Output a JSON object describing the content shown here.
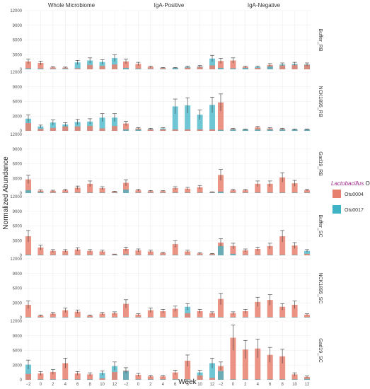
{
  "chart_data": {
    "type": "bar",
    "xlabel": "Week",
    "ylabel": "Normalized Abundance",
    "ylim": [
      0,
      12000
    ],
    "yticks": [
      0,
      3000,
      6000,
      9000,
      12000
    ],
    "weeks": [
      -2,
      0,
      2,
      4,
      6,
      8,
      10,
      12
    ],
    "xtick_labels": [
      "−2",
      "0",
      "2",
      "4",
      "6",
      "8",
      "10",
      "12"
    ],
    "columns": [
      "Whole Microbiome",
      "IgA-Positive",
      "IgA-Negative"
    ],
    "rows": [
      "Buffer_RB",
      "NCK1895_RB",
      "Gad19_RB",
      "Buffer_SC",
      "NCK1895_SC",
      "Gad19_SC"
    ],
    "legend": {
      "title_genus": "Lactobacillus",
      "title_suffix": " OTUs",
      "position": "right",
      "items": [
        "Otu0004",
        "Otu0017"
      ]
    },
    "colors": {
      "Otu0004": "#e8806f",
      "Otu0017": "#3fb3c6",
      "grid": "#ececec",
      "error": "#333333",
      "strip_text": "#333333"
    },
    "series": [
      {
        "name": "Otu0004",
        "values": [
          [
            [
              1600,
              1300,
              400,
              350,
              200,
              900,
              700,
              1000
            ],
            [
              1600,
              1100,
              500,
              300,
              300,
              350,
              500,
              800
            ],
            [
              1700,
              1800,
              500,
              300,
              900,
              800,
              900,
              900
            ]
          ],
          [
            [
              1600,
              400,
              600,
              900,
              900,
              1000,
              500,
              1000
            ],
            [
              1500,
              500,
              300,
              300,
              300,
              300,
              300,
              300
            ],
            [
              5800,
              400,
              300,
              700,
              500,
              400,
              300,
              300
            ]
          ],
          [
            [
              2800,
              500,
              450,
              600,
              1100,
              1900,
              1000,
              300
            ],
            [
              2100,
              600,
              400,
              400,
              1000,
              900,
              1200,
              200
            ],
            [
              3700,
              600,
              600,
              1900,
              1900,
              3200,
              2000,
              600
            ]
          ],
          [
            [
              3900,
              1600,
              900,
              900,
              1200,
              900,
              800,
              200
            ],
            [
              1300,
              1000,
              800,
              500,
              2300,
              800,
              400,
              300
            ],
            [
              2600,
              1900,
              1000,
              1300,
              1900,
              3900,
              2000,
              300
            ]
          ],
          [
            [
              2600,
              400,
              800,
              1500,
              1200,
              400,
              800,
              900
            ],
            [
              2800,
              600,
              1500,
              1300,
              1800,
              900,
              1300,
              900
            ],
            [
              3800,
              900,
              1300,
              3200,
              3600,
              2200,
              2600,
              600
            ]
          ],
          [
            [
              1200,
              1300,
              1600,
              3400,
              1300,
              1100,
              300,
              1600
            ],
            [
              1900,
              1000,
              700,
              700,
              1500,
              3900,
              900,
              400
            ],
            [
              2800,
              8600,
              6200,
              6400,
              5100,
              4800,
              1100,
              600
            ]
          ]
        ]
      },
      {
        "name": "Otu0017",
        "values": [
          [
            [
              200,
              150,
              100,
              150,
              1400,
              1800,
              1500,
              2300
            ],
            [
              300,
              150,
              100,
              100,
              300,
              500,
              600,
              2200
            ],
            [
              300,
              200,
              300,
              500,
              600,
              1000,
              1100,
              1000
            ]
          ],
          [
            [
              2500,
              900,
              1700,
              1300,
              1800,
              1900,
              2700,
              2700
            ],
            [
              300,
              300,
              400,
              500,
              5000,
              5200,
              3300,
              5300
            ],
            [
              200,
              300,
              300,
              300,
              300,
              300,
              300,
              300
            ]
          ],
          [
            [
              600,
              200,
              100,
              100,
              100,
              100,
              100,
              100
            ],
            [
              700,
              100,
              100,
              100,
              100,
              100,
              100,
              100
            ],
            [
              300,
              100,
              100,
              100,
              100,
              100,
              100,
              100
            ]
          ],
          [
            [
              150,
              100,
              100,
              100,
              100,
              100,
              100,
              100
            ],
            [
              200,
              100,
              100,
              100,
              100,
              100,
              100,
              100
            ],
            [
              1900,
              300,
              100,
              100,
              100,
              100,
              100,
              900
            ]
          ],
          [
            [
              100,
              100,
              100,
              100,
              100,
              100,
              100,
              100
            ],
            [
              100,
              100,
              100,
              100,
              100,
              2200,
              100,
              100
            ],
            [
              100,
              100,
              100,
              100,
              100,
              100,
              100,
              100
            ]
          ],
          [
            [
              3100,
              100,
              100,
              100,
              100,
              100,
              1400,
              2800
            ],
            [
              1800,
              100,
              100,
              100,
              100,
              100,
              1500,
              3400
            ],
            [
              1800,
              100,
              100,
              100,
              100,
              100,
              100,
              200
            ]
          ]
        ]
      }
    ]
  }
}
